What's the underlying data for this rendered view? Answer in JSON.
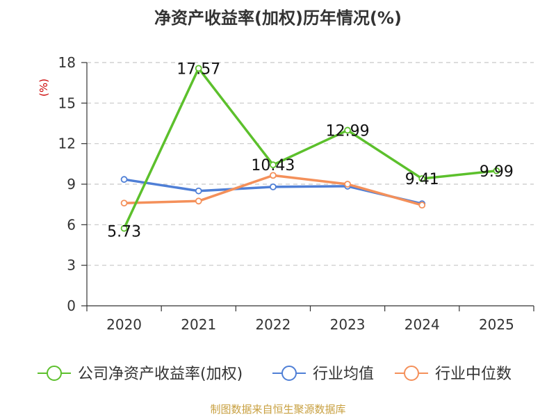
{
  "chart_data": {
    "type": "line",
    "title": "净资产收益率(加权)历年情况(%)",
    "unit_label": "(%)",
    "categories": [
      "2020",
      "2021",
      "2022",
      "2023",
      "2024",
      "2025"
    ],
    "ylim": [
      0,
      18
    ],
    "yticks": [
      0,
      3,
      6,
      9,
      12,
      15,
      18
    ],
    "grid": true,
    "legend_position": "bottom",
    "series": [
      {
        "name": "公司净资产收益率(加权)",
        "color": "#5cc02c",
        "values": [
          5.73,
          17.57,
          10.43,
          12.99,
          9.41,
          9.99
        ],
        "labels": [
          "5.73",
          "17.57",
          "10.43",
          "12.99",
          "9.41",
          "9.99"
        ]
      },
      {
        "name": "行业均值",
        "color": "#4f7fd6",
        "values": [
          9.35,
          8.5,
          8.8,
          8.85,
          7.55,
          null
        ]
      },
      {
        "name": "行业中位数",
        "color": "#f4905a",
        "values": [
          7.6,
          7.75,
          9.65,
          9.0,
          7.45,
          null
        ]
      }
    ]
  },
  "footer": {
    "source": "制图数据来自恒生聚源数据库"
  }
}
